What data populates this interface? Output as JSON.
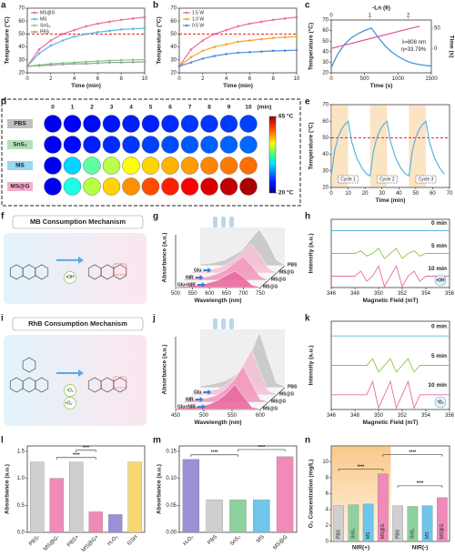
{
  "chart_data": [
    {
      "type": "line",
      "label": "a",
      "xlabel": "Time (min)",
      "ylabel": "Temperature (°C)",
      "x": [
        0,
        1,
        2,
        3,
        4,
        5,
        6,
        7,
        8,
        9,
        10
      ],
      "xlim": [
        0,
        10
      ],
      "ylim": [
        20,
        70
      ],
      "xticks": [
        0,
        2,
        4,
        6,
        8,
        10
      ],
      "yticks": [
        20,
        30,
        40,
        50,
        60,
        70
      ],
      "hline": 50,
      "markers": true,
      "legend": "upper left",
      "series": [
        {
          "name": "MS@G",
          "color": "#f06a9b",
          "values": [
            25,
            38,
            45,
            50,
            53,
            56,
            58,
            59.5,
            61,
            62,
            63
          ]
        },
        {
          "name": "MS",
          "color": "#5bb8e6",
          "values": [
            25,
            35,
            41,
            45,
            48,
            50,
            51.5,
            52.5,
            53.5,
            54,
            54.5
          ]
        },
        {
          "name": "SnS₂",
          "color": "#7fcf7f",
          "values": [
            25,
            26,
            27,
            27.5,
            28,
            28.5,
            29,
            29.5,
            29.8,
            30,
            30.2
          ]
        },
        {
          "name": "PBS",
          "color": "#9e9e9e",
          "values": [
            25,
            25.5,
            26,
            26.5,
            27,
            27,
            27.5,
            28,
            28,
            28.2,
            28.5
          ]
        }
      ]
    },
    {
      "type": "line",
      "label": "b",
      "xlabel": "Time (min)",
      "ylabel": "Temperature (°C)",
      "x": [
        0,
        1,
        2,
        3,
        4,
        5,
        6,
        7,
        8,
        9,
        10
      ],
      "xlim": [
        0,
        10
      ],
      "ylim": [
        20,
        70
      ],
      "xticks": [
        0,
        2,
        4,
        6,
        8,
        10
      ],
      "yticks": [
        20,
        30,
        40,
        50,
        60,
        70
      ],
      "hline": 50,
      "markers": true,
      "legend": "upper left",
      "series": [
        {
          "name": "1.5 W",
          "color": "#f06a9b",
          "values": [
            25,
            38,
            45,
            50,
            53,
            56,
            58,
            59.5,
            61,
            62,
            63
          ]
        },
        {
          "name": "1.0 W",
          "color": "#f5a623",
          "values": [
            25,
            32,
            37,
            40,
            42,
            44,
            45,
            46,
            47,
            47.5,
            48
          ]
        },
        {
          "name": "0.5 W",
          "color": "#4a90d9",
          "values": [
            25,
            28,
            31,
            33,
            34.5,
            35.5,
            36,
            36.5,
            37,
            37.2,
            37.5
          ]
        }
      ]
    },
    {
      "type": "line",
      "label": "c",
      "xlabel": "Time (s)",
      "ylabel": "Temperature (°C)",
      "x2label": "-Ln (θ)",
      "y2label": "Time (s)",
      "x": [
        0,
        100,
        200,
        300,
        400,
        500,
        600,
        700,
        800,
        900,
        1000,
        1100,
        1200,
        1300,
        1400,
        1500
      ],
      "xlim": [
        0,
        1500
      ],
      "xticks": [
        0,
        500,
        1000,
        1500
      ],
      "ylim": [
        20,
        70
      ],
      "yticks": [
        20,
        30,
        40,
        50,
        60,
        70
      ],
      "x2lim": [
        0,
        2.6
      ],
      "x2ticks": [
        0,
        1,
        2
      ],
      "y2lim": [
        -60,
        70
      ],
      "y2ticks": [
        0,
        50
      ],
      "annotations": [
        "λ=808 nm",
        "η=33.79%"
      ],
      "series": [
        {
          "color": "#3c8fd6",
          "values": [
            25,
            38,
            47,
            53,
            57,
            60,
            62.5,
            54,
            46,
            40,
            35.5,
            32,
            29.5,
            28,
            27,
            26.5
          ]
        },
        {
          "color": "#e8508f",
          "axis": "y2",
          "x": [
            0,
            0.5,
            1,
            1.5,
            2,
            2.3
          ],
          "values": [
            0,
            12,
            24,
            36,
            48,
            55
          ]
        }
      ]
    },
    {
      "type": "heatmap",
      "label": "d",
      "columns": [
        0,
        1,
        2,
        3,
        4,
        5,
        6,
        7,
        8,
        9,
        10
      ],
      "unit": "(min)",
      "rows": [
        "PBS",
        "SnS₂",
        "MS",
        "MS@G"
      ],
      "row_colors": [
        "#b0b0b0",
        "#9fd9a8",
        "#7fcdef",
        "#f29ac2"
      ],
      "values": [
        [
          25,
          25.5,
          26,
          26.5,
          27,
          27,
          27.5,
          28,
          28,
          28.2,
          28.5
        ],
        [
          25,
          26,
          27,
          27.5,
          28,
          28.5,
          29,
          29.5,
          29.8,
          30,
          30.2
        ],
        [
          25,
          35,
          41,
          45,
          48,
          50,
          51.5,
          52.5,
          53.5,
          54,
          54.5
        ],
        [
          25,
          38,
          45,
          50,
          53,
          56,
          58,
          59.5,
          61,
          62,
          63
        ]
      ],
      "clim": [
        20,
        65
      ],
      "cticks": [
        {
          "value": 65,
          "label": "65 °C"
        },
        {
          "value": 20,
          "label": "20 °C"
        }
      ]
    },
    {
      "type": "line",
      "label": "e",
      "xlabel": "Time (min)",
      "ylabel": "Temperature (°C)",
      "x": [
        0,
        2,
        4,
        6,
        8,
        10,
        12,
        15,
        18,
        21,
        23,
        25,
        27,
        29,
        31,
        33,
        35,
        38,
        41,
        44,
        46,
        48,
        50,
        52,
        54,
        56,
        58,
        61,
        64,
        67
      ],
      "xlim": [
        0,
        70
      ],
      "xticks": [
        0,
        10,
        20,
        30,
        40,
        50,
        60,
        70
      ],
      "ylim": [
        20,
        70
      ],
      "yticks": [
        20,
        30,
        40,
        50,
        60,
        70
      ],
      "hline": 50,
      "cycles": [
        "Cycle 1",
        "Cycle 2",
        "Cycle 3"
      ],
      "series": [
        {
          "color": "#5ab4e0",
          "values": [
            27,
            42,
            50,
            55,
            58,
            60,
            48,
            38,
            32,
            28,
            27,
            42,
            50,
            55,
            58,
            60,
            48,
            38,
            32,
            28,
            27,
            42,
            50,
            55,
            58,
            60,
            48,
            38,
            32,
            28
          ]
        }
      ]
    },
    {
      "type": "diagram",
      "label": "f",
      "title": "MB Consumption Mechanism",
      "labels": [
        "•OH"
      ]
    },
    {
      "type": "waterfall",
      "label": "g",
      "xlabel": "Wavelength (nm)",
      "ylabel": "Absorbance (a.u.)",
      "x": [
        500,
        525,
        550,
        575,
        600,
        625,
        650,
        675,
        700,
        725,
        750
      ],
      "xlim": [
        500,
        750
      ],
      "xticks": [
        500,
        550,
        600,
        650,
        700,
        750
      ],
      "ylim": [
        0,
        1
      ],
      "series": [
        {
          "name": "PBS",
          "color": "#c8c8c8",
          "values": [
            0.04,
            0.06,
            0.1,
            0.16,
            0.28,
            0.42,
            0.7,
            0.95,
            0.6,
            0.15,
            0.02
          ]
        },
        {
          "name": "MS@G",
          "condition": "Glu",
          "color": "#f6c3d8",
          "values": [
            0.03,
            0.05,
            0.08,
            0.13,
            0.22,
            0.34,
            0.56,
            0.76,
            0.48,
            0.12,
            0.02
          ]
        },
        {
          "name": "MS@G",
          "condition": "NIR",
          "color": "#f19bbf",
          "values": [
            0.03,
            0.04,
            0.07,
            0.1,
            0.18,
            0.27,
            0.46,
            0.62,
            0.39,
            0.1,
            0.01
          ]
        },
        {
          "name": "MS@G",
          "condition": "Glu+NIR",
          "color": "#e96b9f",
          "values": [
            0.02,
            0.03,
            0.05,
            0.07,
            0.13,
            0.19,
            0.32,
            0.43,
            0.27,
            0.07,
            0.01
          ]
        }
      ]
    },
    {
      "type": "spectra",
      "label": "h",
      "xlabel": "Magnetic Field (mT)",
      "ylabel": "Intensity (a.u.)",
      "annotation": "•OH",
      "x": [
        346,
        346.5,
        347,
        347.5,
        348,
        348.5,
        349,
        349.5,
        350,
        350.5,
        351,
        351.5,
        352,
        352.5,
        353,
        353.5,
        354,
        354.5,
        355,
        355.5,
        356
      ],
      "xlim": [
        346,
        356
      ],
      "xticks": [
        346,
        348,
        350,
        352,
        354,
        356
      ],
      "ylim": [
        -1,
        1
      ],
      "series": [
        {
          "name": "0 min",
          "color": "#5ab4e0",
          "values": [
            0,
            0,
            0,
            0,
            0,
            0,
            0,
            0,
            0,
            0,
            0,
            0,
            0,
            0,
            0,
            0,
            0,
            0,
            0,
            0,
            0
          ]
        },
        {
          "name": "5 min",
          "color": "#8cc63f",
          "values": [
            0,
            0,
            0,
            0,
            0,
            0.15,
            -0.15,
            0,
            0.3,
            -0.3,
            0,
            0.3,
            -0.3,
            0,
            0.15,
            -0.15,
            0,
            0,
            0,
            0,
            0
          ]
        },
        {
          "name": "10 min",
          "color": "#e86aa6",
          "values": [
            0,
            0,
            0,
            0,
            0,
            0.3,
            -0.3,
            0,
            0.6,
            -0.6,
            0,
            0.6,
            -0.6,
            0,
            0.3,
            -0.3,
            0,
            0,
            0,
            0,
            0
          ]
        }
      ]
    },
    {
      "type": "diagram",
      "label": "i",
      "title": "RhB Consumption Mechanism",
      "labels": [
        "¹O₂",
        "•O₂⁻"
      ]
    },
    {
      "type": "waterfall",
      "label": "j",
      "xlabel": "Wavelength (nm)",
      "ylabel": "Absorbance (a.u.)",
      "x": [
        450,
        465,
        480,
        495,
        510,
        525,
        540,
        555,
        570,
        585,
        600
      ],
      "xlim": [
        450,
        600
      ],
      "xticks": [
        450,
        500,
        550,
        600
      ],
      "ylim": [
        0,
        1
      ],
      "series": [
        {
          "name": "PBS",
          "color": "#c8c8c8",
          "values": [
            0.03,
            0.05,
            0.08,
            0.12,
            0.2,
            0.35,
            0.6,
            0.95,
            0.5,
            0.08,
            0.02
          ]
        },
        {
          "name": "MS@G",
          "condition": "Glu",
          "color": "#f6c3d8",
          "values": [
            0.03,
            0.04,
            0.07,
            0.1,
            0.17,
            0.29,
            0.5,
            0.78,
            0.41,
            0.07,
            0.02
          ]
        },
        {
          "name": "MS@G",
          "condition": "NIR",
          "color": "#f19bbf",
          "values": [
            0.02,
            0.04,
            0.05,
            0.08,
            0.13,
            0.23,
            0.39,
            0.62,
            0.33,
            0.05,
            0.01
          ]
        },
        {
          "name": "MS@G",
          "condition": "Glu+NIR",
          "color": "#e96b9f",
          "values": [
            0.02,
            0.03,
            0.04,
            0.06,
            0.09,
            0.16,
            0.27,
            0.43,
            0.23,
            0.04,
            0.01
          ]
        }
      ]
    },
    {
      "type": "spectra",
      "label": "k",
      "xlabel": "Magnetic Field (mT)",
      "ylabel": "Intensity (a.u.)",
      "annotation": "¹O₂",
      "x": [
        346,
        346.5,
        347,
        347.5,
        348,
        348.5,
        349,
        349.5,
        350,
        350.5,
        351,
        351.5,
        352,
        352.5,
        353,
        353.5,
        354,
        354.5,
        355,
        355.5,
        356
      ],
      "xlim": [
        346,
        356
      ],
      "xticks": [
        346,
        348,
        350,
        352,
        354,
        356
      ],
      "ylim": [
        -1,
        1
      ],
      "series": [
        {
          "name": "0 min",
          "color": "#5ab4e0",
          "values": [
            0,
            0,
            0,
            0,
            0,
            0,
            0,
            0,
            0,
            0,
            0,
            0,
            0,
            0,
            0,
            0,
            0,
            0,
            0,
            0,
            0
          ]
        },
        {
          "name": "5 min",
          "color": "#8cc63f",
          "values": [
            0,
            0,
            0,
            0,
            0,
            0,
            0,
            0.3,
            -0.3,
            0,
            0.3,
            -0.3,
            0,
            0.3,
            -0.3,
            0,
            0,
            0,
            0,
            0,
            0
          ]
        },
        {
          "name": "10 min",
          "color": "#e86aa6",
          "values": [
            0,
            0,
            0,
            0,
            0,
            0,
            0,
            0.6,
            -0.6,
            0,
            0.6,
            -0.6,
            0,
            0.6,
            -0.6,
            0,
            0,
            0,
            0,
            0,
            0
          ]
        }
      ]
    },
    {
      "type": "bar",
      "label": "l",
      "ylabel": "Absorbance (a.u.)",
      "categories": [
        "PBS-",
        "MS@G-",
        "PBS+",
        "MS@G+",
        "H₂O₂",
        "GSH"
      ],
      "values": [
        1.3,
        1.0,
        1.3,
        0.38,
        0.33,
        1.3
      ],
      "colors": [
        "#cfcfcf",
        "#f08ab8",
        "#cfcfcf",
        "#f08ab8",
        "#9b8fd6",
        "#f7d774"
      ],
      "ylim": [
        0,
        1.6
      ],
      "yticks": [
        {
          "value": 0,
          "label": "0.0"
        },
        0.5,
        {
          "value": 1,
          "label": "1.0"
        },
        1.5
      ],
      "annotations": [
        "****",
        "****"
      ]
    },
    {
      "type": "bar",
      "label": "m",
      "ylabel": "Absorbance (a.u.)",
      "categories": [
        "H₂O₂",
        "PBS",
        "SnS₂",
        "MS",
        "MS@G"
      ],
      "values": [
        0.135,
        0.06,
        0.06,
        0.06,
        0.14
      ],
      "colors": [
        "#9b8fd6",
        "#cfcfcf",
        "#8fd19e",
        "#6ec6ea",
        "#f08ab8"
      ],
      "ylim": [
        0,
        0.16
      ],
      "yticks": [
        {
          "value": 0,
          "label": "0.00"
        },
        {
          "value": 0.05,
          "label": "0.05"
        },
        {
          "value": 0.1,
          "label": "0.10"
        },
        {
          "value": 0.15,
          "label": "0.15"
        }
      ],
      "annotations": [
        "****",
        "****"
      ]
    },
    {
      "type": "bar",
      "label": "n",
      "ylabel": "O₂ Concentration (mg/L)",
      "categories": [
        "PBS",
        "SnS₂",
        "MS",
        "MS@G",
        "PBS",
        "SnS₂",
        "MS",
        "MS@G"
      ],
      "groups": [
        "NIR(+)",
        "NIR(-)"
      ],
      "values": [
        4.5,
        4.6,
        4.7,
        8.5,
        4.5,
        4.4,
        4.5,
        5.5
      ],
      "colors": [
        "#cfcfcf",
        "#8fd19e",
        "#6ec6ea",
        "#f08ab8",
        "#cfcfcf",
        "#8fd19e",
        "#6ec6ea",
        "#f08ab8"
      ],
      "ylim": [
        0,
        12
      ],
      "yticks": [
        0,
        2,
        4,
        6,
        8,
        10
      ],
      "annotations": [
        "****",
        "****",
        "****"
      ]
    }
  ]
}
